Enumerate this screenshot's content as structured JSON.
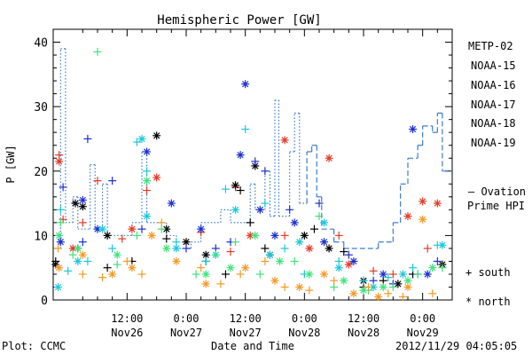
{
  "footer": {
    "left": "Plot: CCMC",
    "center": "Date and Time",
    "right": "2012/11/29 04:05:05"
  },
  "colors": {
    "METP-02": "#000000",
    "NOAA-15": "#1a2fd0",
    "NOAA-16": "#19c9d9",
    "NOAA-17": "#3fe27a",
    "NOAA-18": "#f39a26",
    "NOAA-19": "#e43a26",
    "ovation": "#2a6fc9"
  },
  "chart_data": {
    "type": "scatter",
    "title": "Hemispheric Power [GW]",
    "xlabel": "Date and Time",
    "ylabel": "P [GW]",
    "x_unit": "hours since 2012-11-26 00:00",
    "xlim": [
      -3,
      78
    ],
    "ylim": [
      0,
      42
    ],
    "yticks": [
      0,
      10,
      20,
      30,
      40
    ],
    "xticks": [
      {
        "x": 12,
        "top": "12:00",
        "bottom": "Nov26"
      },
      {
        "x": 24,
        "top": "0:00",
        "bottom": "Nov27"
      },
      {
        "x": 36,
        "top": "12:00",
        "bottom": "Nov27"
      },
      {
        "x": 48,
        "top": "0:00",
        "bottom": "Nov28"
      },
      {
        "x": 60,
        "top": "12:00",
        "bottom": "Nov28"
      },
      {
        "x": 72,
        "top": "0:00",
        "bottom": "Nov29"
      }
    ],
    "legend": {
      "placement": "right",
      "satellites": [
        "METP-02",
        "NOAA-15",
        "NOAA-16",
        "NOAA-17",
        "NOAA-18",
        "NOAA-19"
      ],
      "ovation_line1": "– Ovation",
      "ovation_line2": "Prime HPI",
      "south_label": "+ south",
      "north_label": "* north"
    },
    "ovation_series": {
      "name": "Ovation Prime HPI",
      "style": "dotted-then-dashed",
      "dashed_from": 48,
      "points": [
        [
          -3,
          8
        ],
        [
          -1.5,
          8
        ],
        [
          -1.5,
          39
        ],
        [
          -0.5,
          39
        ],
        [
          -0.5,
          12
        ],
        [
          1,
          12
        ],
        [
          1,
          16
        ],
        [
          2,
          16
        ],
        [
          2,
          11
        ],
        [
          4.5,
          11
        ],
        [
          4.5,
          21
        ],
        [
          5.5,
          21
        ],
        [
          5.5,
          11
        ],
        [
          7,
          11
        ],
        [
          7,
          18
        ],
        [
          8,
          18
        ],
        [
          8,
          10
        ],
        [
          13,
          10
        ],
        [
          13,
          12
        ],
        [
          15,
          12
        ],
        [
          15,
          23
        ],
        [
          16,
          23
        ],
        [
          16,
          12
        ],
        [
          20,
          12
        ],
        [
          20,
          10
        ],
        [
          22,
          10
        ],
        [
          22,
          8
        ],
        [
          25,
          8
        ],
        [
          25,
          9
        ],
        [
          27,
          9
        ],
        [
          27,
          12
        ],
        [
          31,
          12
        ],
        [
          31,
          14
        ],
        [
          33,
          14
        ],
        [
          33,
          12
        ],
        [
          37,
          12
        ],
        [
          37,
          18
        ],
        [
          38,
          18
        ],
        [
          38,
          14
        ],
        [
          40,
          14
        ],
        [
          40,
          20
        ],
        [
          41,
          20
        ],
        [
          41,
          13
        ],
        [
          42,
          13
        ],
        [
          42,
          31
        ],
        [
          42.8,
          31
        ],
        [
          42.8,
          13
        ],
        [
          45,
          13
        ],
        [
          45,
          23
        ],
        [
          46,
          23
        ],
        [
          46,
          29
        ],
        [
          47,
          29
        ],
        [
          47,
          15
        ],
        [
          48.5,
          15
        ],
        [
          48.5,
          23
        ],
        [
          49.5,
          23
        ],
        [
          49.5,
          24
        ],
        [
          50.5,
          24
        ],
        [
          50.5,
          16
        ],
        [
          51.5,
          16
        ],
        [
          51.5,
          11
        ],
        [
          54,
          11
        ],
        [
          54,
          9
        ],
        [
          56,
          9
        ],
        [
          56,
          8
        ],
        [
          63,
          8
        ],
        [
          63,
          9
        ],
        [
          66,
          9
        ],
        [
          66,
          12
        ],
        [
          67.5,
          12
        ],
        [
          67.5,
          18
        ],
        [
          69,
          18
        ],
        [
          69,
          22
        ],
        [
          71,
          22
        ],
        [
          71,
          24
        ],
        [
          72,
          24
        ],
        [
          72,
          27
        ],
        [
          74,
          27
        ],
        [
          74,
          26
        ],
        [
          75,
          26
        ],
        [
          75,
          29
        ],
        [
          76,
          29
        ],
        [
          76,
          20
        ],
        [
          78,
          20
        ]
      ]
    },
    "series": [
      {
        "name": "NOAA-19",
        "south": [
          [
            -1.8,
            22.5
          ],
          [
            -1,
            12.5
          ],
          [
            3,
            12
          ],
          [
            6,
            18.5
          ],
          [
            11,
            9.5
          ],
          [
            16,
            17
          ],
          [
            27,
            10.5
          ],
          [
            33,
            7.5
          ],
          [
            34,
            17.5
          ],
          [
            44,
            10
          ],
          [
            55,
            10
          ],
          [
            62,
            4.5
          ],
          [
            66,
            4
          ],
          [
            73,
            8
          ]
        ],
        "north": [
          [
            -1.8,
            21.5
          ],
          [
            1,
            8
          ],
          [
            13,
            11
          ],
          [
            18,
            19
          ],
          [
            37,
            10
          ],
          [
            44,
            24.8
          ],
          [
            49,
            8
          ],
          [
            53,
            22
          ],
          [
            57,
            5.5
          ],
          [
            69,
            13
          ],
          [
            72,
            15.3
          ],
          [
            75,
            15
          ]
        ]
      },
      {
        "name": "METP-02",
        "south": [
          [
            -2.5,
            6
          ],
          [
            2,
            8
          ],
          [
            8,
            5
          ],
          [
            13,
            6
          ],
          [
            20,
            9.5
          ],
          [
            28,
            6
          ],
          [
            32,
            4
          ],
          [
            35,
            17
          ],
          [
            37,
            12
          ],
          [
            40,
            8
          ],
          [
            50,
            11
          ],
          [
            56,
            7.5
          ],
          [
            60,
            2
          ],
          [
            64,
            3
          ],
          [
            70,
            4
          ]
        ],
        "north": [
          [
            -2.5,
            5.5
          ],
          [
            1.5,
            15
          ],
          [
            3,
            14.5
          ],
          [
            8,
            10
          ],
          [
            18,
            25.5
          ],
          [
            20,
            11
          ],
          [
            24,
            9
          ],
          [
            28,
            7
          ],
          [
            34,
            17.8
          ],
          [
            38,
            20.8
          ],
          [
            41,
            7
          ],
          [
            48,
            10
          ],
          [
            53,
            8
          ],
          [
            60,
            3
          ],
          [
            67,
            2.5
          ],
          [
            76,
            5.5
          ]
        ]
      },
      {
        "name": "NOAA-15",
        "south": [
          [
            -1,
            17.5
          ],
          [
            3,
            9
          ],
          [
            4,
            25
          ],
          [
            9,
            18.5
          ],
          [
            15,
            11
          ],
          [
            24,
            8
          ],
          [
            30,
            8
          ],
          [
            33,
            9
          ],
          [
            38,
            21.5
          ],
          [
            40,
            20
          ],
          [
            45,
            14
          ],
          [
            51,
            15
          ],
          [
            57,
            7
          ],
          [
            62,
            3
          ],
          [
            66,
            2.5
          ],
          [
            71,
            4
          ],
          [
            75,
            6
          ]
        ],
        "north": [
          [
            -1.5,
            9
          ],
          [
            3,
            15.5
          ],
          [
            6,
            11
          ],
          [
            16,
            23
          ],
          [
            21,
            15
          ],
          [
            27,
            11
          ],
          [
            35,
            22.5
          ],
          [
            39,
            14
          ],
          [
            36,
            33.5
          ],
          [
            42,
            10
          ],
          [
            46,
            12
          ],
          [
            52,
            9
          ],
          [
            58,
            6
          ],
          [
            64,
            4
          ],
          [
            70,
            26.5
          ],
          [
            73,
            4
          ]
        ]
      },
      {
        "name": "NOAA-16",
        "south": [
          [
            -1.5,
            14
          ],
          [
            0,
            4.5
          ],
          [
            4,
            6
          ],
          [
            9,
            8
          ],
          [
            14,
            24.5
          ],
          [
            16,
            20
          ],
          [
            22,
            9
          ],
          [
            28,
            6
          ],
          [
            32,
            17.2
          ],
          [
            36,
            26.5
          ],
          [
            40,
            15
          ],
          [
            44,
            8
          ],
          [
            48,
            4
          ],
          [
            55,
            6
          ],
          [
            60,
            3
          ],
          [
            65,
            3.5
          ],
          [
            70,
            5
          ],
          [
            75,
            8.5
          ]
        ],
        "north": [
          [
            -2,
            2
          ],
          [
            2,
            6
          ],
          [
            7,
            11
          ],
          [
            15,
            25
          ],
          [
            16,
            13
          ],
          [
            22,
            8
          ],
          [
            30,
            7
          ],
          [
            34,
            14
          ],
          [
            41,
            7
          ],
          [
            47,
            9
          ],
          [
            52,
            12
          ],
          [
            55,
            5
          ],
          [
            62,
            2
          ],
          [
            68,
            4
          ],
          [
            76,
            8.5
          ]
        ]
      },
      {
        "name": "NOAA-17",
        "south": [
          [
            -1.5,
            12
          ],
          [
            1,
            7
          ],
          [
            6,
            38.5
          ],
          [
            10,
            5.5
          ],
          [
            14,
            10
          ],
          [
            19,
            11
          ],
          [
            26,
            4
          ],
          [
            30,
            7
          ],
          [
            34,
            9
          ],
          [
            39,
            4
          ],
          [
            46,
            6
          ],
          [
            51,
            13
          ],
          [
            54,
            2
          ],
          [
            61,
            1.5
          ],
          [
            66,
            2
          ],
          [
            71,
            4
          ],
          [
            76,
            5
          ]
        ],
        "north": [
          [
            -1.8,
            10
          ],
          [
            2,
            8
          ],
          [
            10,
            7
          ],
          [
            16,
            18.5
          ],
          [
            20,
            8
          ],
          [
            28,
            4
          ],
          [
            33,
            5
          ],
          [
            38,
            10
          ],
          [
            43,
            6
          ],
          [
            49,
            4
          ],
          [
            56,
            3
          ],
          [
            60,
            1.5
          ],
          [
            64,
            2
          ],
          [
            69,
            3
          ],
          [
            74,
            5
          ]
        ]
      },
      {
        "name": "NOAA-18",
        "south": [
          [
            -2,
            8
          ],
          [
            3,
            4
          ],
          [
            7,
            3.5
          ],
          [
            12,
            6
          ],
          [
            15,
            4
          ],
          [
            19,
            12
          ],
          [
            27,
            5
          ],
          [
            31,
            2.5
          ],
          [
            35,
            4
          ],
          [
            40,
            6
          ],
          [
            44,
            2
          ],
          [
            49,
            1.5
          ],
          [
            54,
            3
          ],
          [
            61,
            2
          ],
          [
            65,
            1
          ],
          [
            68,
            0.5
          ],
          [
            74,
            1
          ]
        ],
        "north": [
          [
            -1.8,
            5
          ],
          [
            3,
            7
          ],
          [
            9,
            4
          ],
          [
            13,
            5
          ],
          [
            17,
            10
          ],
          [
            22,
            6
          ],
          [
            28,
            2.5
          ],
          [
            36,
            5
          ],
          [
            42,
            3
          ],
          [
            47,
            2
          ],
          [
            52,
            4
          ],
          [
            58,
            1
          ],
          [
            63,
            0.5
          ],
          [
            69,
            2
          ],
          [
            72,
            12.5
          ]
        ]
      }
    ]
  }
}
